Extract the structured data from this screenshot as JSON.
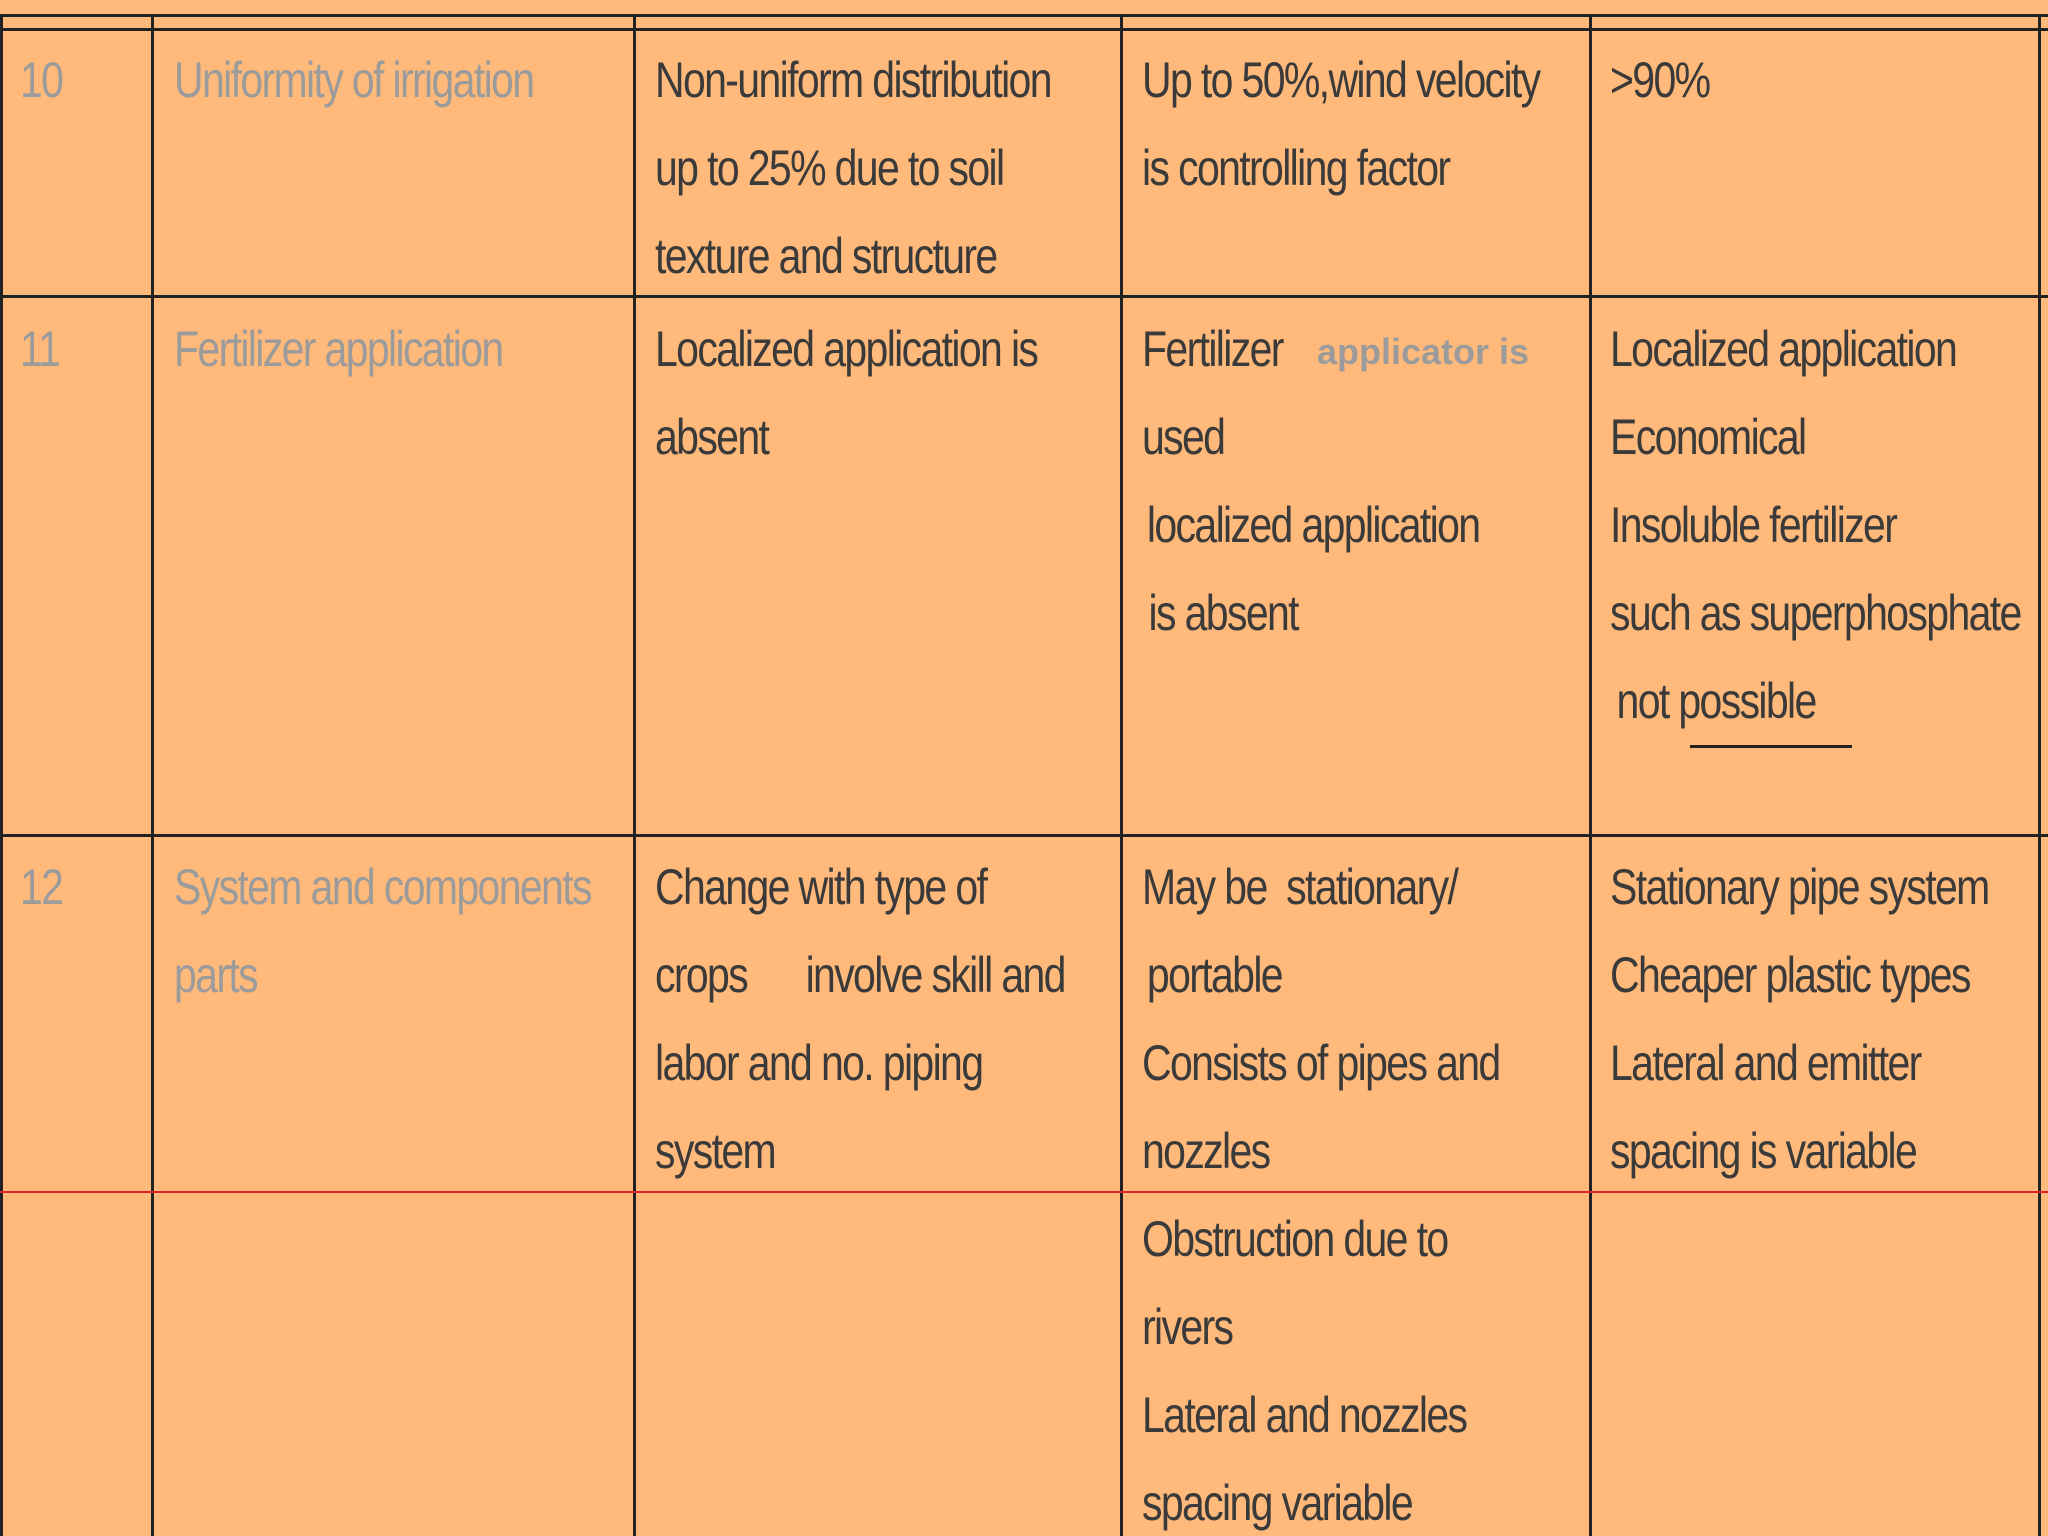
{
  "rows": [
    {
      "no": "10",
      "parameter": "Uniformity of irrigation",
      "surface": [
        "Non-uniform distribution",
        "up to 25% due to soil",
        "texture and structure"
      ],
      "sprinkler": [
        "Up to 50%,wind velocity",
        "is controlling factor"
      ],
      "drip": [
        ">90%"
      ]
    },
    {
      "no": "11",
      "parameter": "Fertilizer application",
      "surface": [
        "Localized application is",
        "absent"
      ],
      "sprinkler_first_big": "Fertilizer",
      "sprinkler_first_small": "applicator is",
      "sprinkler": [
        "used",
        "localized  application",
        "is absent"
      ],
      "drip": [
        "Localized application",
        "Economical",
        "Insoluble fertilizer",
        "such as superphosphate",
        "not  possible"
      ]
    },
    {
      "no": "12",
      "parameter": [
        "System and components",
        "parts"
      ],
      "surface": [
        "Change with type of",
        "crops      involve skill and",
        "labor and no. piping",
        "system"
      ],
      "sprinkler": [
        "May be  stationary/",
        "portable",
        "Consists of pipes and",
        "nozzles",
        "Obstruction due to",
        "rivers",
        "Lateral and nozzles",
        "spacing variable"
      ],
      "drip": [
        "Stationary pipe system",
        "Cheaper plastic types",
        "Lateral and emitter",
        "spacing is variable"
      ]
    }
  ],
  "colors": {
    "background": "#FFB97A",
    "grid": "#222222",
    "text_dark": "#3A3A3A",
    "text_grey": "#9B9B9B",
    "marker_line": "#E0222A"
  }
}
